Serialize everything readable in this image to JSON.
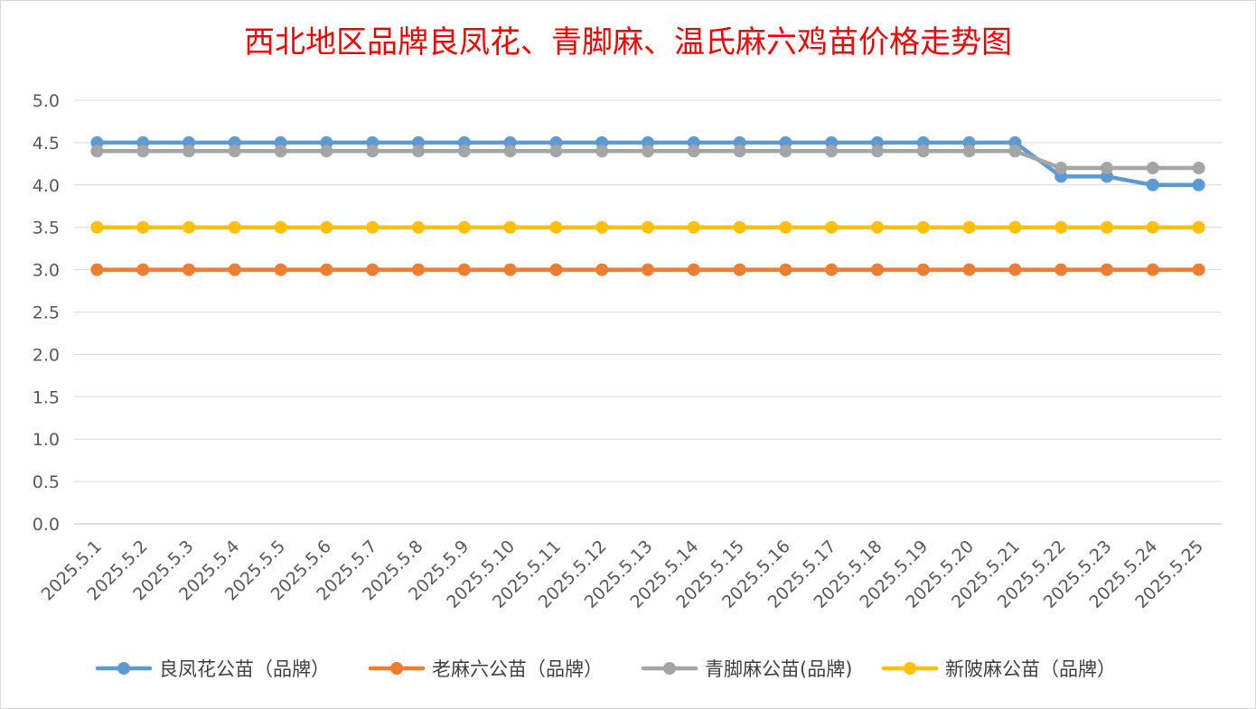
{
  "chart_data": {
    "type": "line",
    "title": "西北地区品牌良凤花、青脚麻、温氏麻六鸡苗价格走势图",
    "xlabel": "",
    "ylabel": "",
    "ylim": [
      0,
      5
    ],
    "y_ticks": [
      "0.0",
      "0.5",
      "1.0",
      "1.5",
      "2.0",
      "2.5",
      "3.0",
      "3.5",
      "4.0",
      "4.5",
      "5.0"
    ],
    "grid": true,
    "legend_position": "bottom",
    "categories": [
      "2025.5.1",
      "2025.5.2",
      "2025.5.3",
      "2025.5.4",
      "2025.5.5",
      "2025.5.6",
      "2025.5.7",
      "2025.5.8",
      "2025.5.9",
      "2025.5.10",
      "2025.5.11",
      "2025.5.12",
      "2025.5.13",
      "2025.5.14",
      "2025.5.15",
      "2025.5.16",
      "2025.5.17",
      "2025.5.18",
      "2025.5.19",
      "2025.5.20",
      "2025.5.21",
      "2025.5.22",
      "2025.5.23",
      "2025.5.24",
      "2025.5.25"
    ],
    "series": [
      {
        "name": "良凤花公苗（品牌）",
        "color": "#5b9bd5",
        "values": [
          4.5,
          4.5,
          4.5,
          4.5,
          4.5,
          4.5,
          4.5,
          4.5,
          4.5,
          4.5,
          4.5,
          4.5,
          4.5,
          4.5,
          4.5,
          4.5,
          4.5,
          4.5,
          4.5,
          4.5,
          4.5,
          4.1,
          4.1,
          4.0,
          4.0
        ]
      },
      {
        "name": "老麻六公苗（品牌）",
        "color": "#ed7d31",
        "values": [
          3.0,
          3.0,
          3.0,
          3.0,
          3.0,
          3.0,
          3.0,
          3.0,
          3.0,
          3.0,
          3.0,
          3.0,
          3.0,
          3.0,
          3.0,
          3.0,
          3.0,
          3.0,
          3.0,
          3.0,
          3.0,
          3.0,
          3.0,
          3.0,
          3.0
        ]
      },
      {
        "name": "青脚麻公苗(品牌)",
        "color": "#a5a5a5",
        "values": [
          4.4,
          4.4,
          4.4,
          4.4,
          4.4,
          4.4,
          4.4,
          4.4,
          4.4,
          4.4,
          4.4,
          4.4,
          4.4,
          4.4,
          4.4,
          4.4,
          4.4,
          4.4,
          4.4,
          4.4,
          4.4,
          4.2,
          4.2,
          4.2,
          4.2
        ]
      },
      {
        "name": "新陂麻公苗（品牌）",
        "color": "#ffc000",
        "values": [
          3.5,
          3.5,
          3.5,
          3.5,
          3.5,
          3.5,
          3.5,
          3.5,
          3.5,
          3.5,
          3.5,
          3.5,
          3.5,
          3.5,
          3.5,
          3.5,
          3.5,
          3.5,
          3.5,
          3.5,
          3.5,
          3.5,
          3.5,
          3.5,
          3.5
        ]
      }
    ]
  }
}
